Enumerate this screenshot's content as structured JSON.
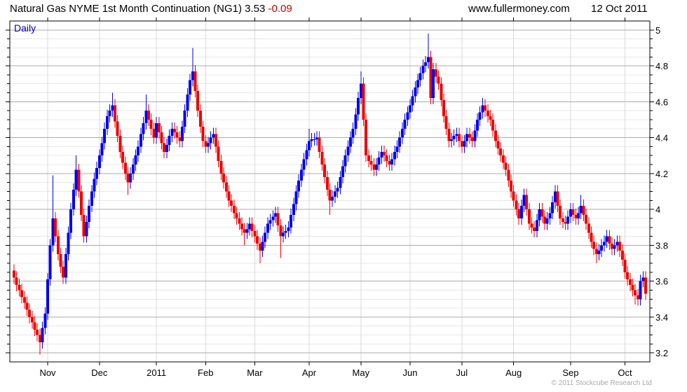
{
  "header": {
    "instrument": "Natural Gas NYME 1st Month Continuation (NG1)",
    "last": "3.53",
    "change": "-0.09",
    "website": "www.fullermoney.com",
    "date": "12 Oct 2011"
  },
  "chart": {
    "frequency_label": "Daily",
    "copyright": "© 2011 Stockcube Research Ltd"
  },
  "colors": {
    "up": "#0000ee",
    "down": "#ee0000",
    "change_text": "#cc0000",
    "daily_label": "#0000bb",
    "grid_major": "#ababab",
    "grid_minor": "#e8e8e8",
    "grid_vertical": "#d9d9d9",
    "axis": "#000000",
    "label_text": "#000000",
    "copyright_text": "#a8a8a8"
  },
  "chart_data": {
    "type": "candlestick",
    "title": "Natural Gas NYME 1st Month Continuation (NG1)",
    "series_name": "NG1 Daily",
    "last_price": 3.53,
    "change": -0.09,
    "grid": true,
    "legend_position": "none",
    "ylabel": "",
    "xlabel": "",
    "ylim": [
      3.15,
      5.05
    ],
    "yticks": [
      3.2,
      3.4,
      3.6,
      3.8,
      4.0,
      4.2,
      4.4,
      4.6,
      4.8,
      5.0
    ],
    "ytick_labels": [
      "3.2",
      "3.4",
      "3.6",
      "3.8",
      "4",
      "4.2",
      "4.4",
      "4.6",
      "4.8",
      "5"
    ],
    "minor_step": 0.05,
    "x_axis_months": [
      {
        "label": "Nov",
        "day": 13
      },
      {
        "label": "Dec",
        "day": 33
      },
      {
        "label": "2011",
        "day": 55
      },
      {
        "label": "Feb",
        "day": 74
      },
      {
        "label": "Mar",
        "day": 93
      },
      {
        "label": "Apr",
        "day": 114
      },
      {
        "label": "May",
        "day": 134
      },
      {
        "label": "Jun",
        "day": 153
      },
      {
        "label": "Jul",
        "day": 173
      },
      {
        "label": "Aug",
        "day": 193
      },
      {
        "label": "Sep",
        "day": 215
      },
      {
        "label": "Oct",
        "day": 236
      }
    ],
    "first_open": 3.66,
    "wick_pad": 0.035,
    "closes": [
      3.62,
      3.58,
      3.55,
      3.51,
      3.48,
      3.44,
      3.4,
      3.37,
      3.33,
      3.3,
      3.26,
      3.34,
      3.42,
      3.61,
      3.8,
      3.95,
      3.85,
      3.75,
      3.68,
      3.62,
      3.75,
      3.87,
      4.0,
      4.11,
      4.22,
      4.1,
      3.97,
      3.85,
      3.93,
      4.02,
      4.1,
      4.17,
      4.23,
      4.3,
      4.37,
      4.45,
      4.52,
      4.55,
      4.58,
      4.49,
      4.41,
      4.32,
      4.26,
      4.2,
      4.15,
      4.2,
      4.25,
      4.3,
      4.35,
      4.42,
      4.48,
      4.55,
      4.5,
      4.45,
      4.4,
      4.48,
      4.43,
      4.37,
      4.32,
      4.36,
      4.41,
      4.45,
      4.43,
      4.4,
      4.38,
      4.46,
      4.55,
      4.64,
      4.72,
      4.77,
      4.66,
      4.55,
      4.46,
      4.38,
      4.35,
      4.37,
      4.4,
      4.42,
      4.35,
      4.27,
      4.2,
      4.15,
      4.1,
      4.05,
      4.02,
      3.98,
      3.95,
      3.92,
      3.89,
      3.87,
      3.89,
      3.92,
      3.88,
      3.85,
      3.81,
      3.77,
      3.82,
      3.87,
      3.92,
      3.94,
      3.96,
      3.98,
      3.91,
      3.85,
      3.87,
      3.88,
      3.9,
      3.97,
      4.03,
      4.1,
      4.16,
      4.22,
      4.28,
      4.33,
      4.38,
      4.39,
      4.39,
      4.4,
      4.32,
      4.25,
      4.18,
      4.11,
      4.05,
      4.07,
      4.1,
      4.12,
      4.18,
      4.24,
      4.3,
      4.35,
      4.4,
      4.45,
      4.53,
      4.62,
      4.7,
      4.5,
      4.3,
      4.27,
      4.25,
      4.22,
      4.25,
      4.29,
      4.32,
      4.3,
      4.27,
      4.25,
      4.28,
      4.32,
      4.35,
      4.4,
      4.45,
      4.5,
      4.54,
      4.58,
      4.63,
      4.68,
      4.72,
      4.76,
      4.8,
      4.82,
      4.85,
      4.62,
      4.78,
      4.74,
      4.7,
      4.61,
      4.52,
      4.45,
      4.38,
      4.39,
      4.41,
      4.42,
      4.38,
      4.35,
      4.38,
      4.42,
      4.4,
      4.38,
      4.44,
      4.5,
      4.54,
      4.58,
      4.55,
      4.52,
      4.5,
      4.44,
      4.38,
      4.34,
      4.3,
      4.26,
      4.22,
      4.16,
      4.1,
      4.05,
      4.0,
      3.95,
      4.02,
      4.08,
      4.0,
      3.92,
      3.9,
      3.88,
      3.94,
      4.0,
      3.96,
      3.92,
      3.95,
      3.98,
      4.04,
      4.1,
      4.02,
      3.95,
      3.93,
      3.92,
      3.96,
      4.0,
      3.97,
      3.95,
      3.98,
      4.02,
      3.97,
      3.92,
      3.87,
      3.82,
      3.78,
      3.75,
      3.77,
      3.8,
      3.82,
      3.85,
      3.81,
      3.78,
      3.8,
      3.82,
      3.77,
      3.72,
      3.65,
      3.61,
      3.58,
      3.55,
      3.52,
      3.5,
      3.6,
      3.62,
      3.53
    ],
    "wick_highs": {
      "15": 4.19,
      "24": 4.3,
      "38": 4.65,
      "51": 4.64,
      "69": 4.9,
      "114": 4.45,
      "134": 4.77,
      "160": 4.98,
      "181": 4.62,
      "219": 4.08
    },
    "wick_lows": {
      "10": 3.19,
      "44": 4.08,
      "89": 3.8,
      "95": 3.7,
      "103": 3.73,
      "122": 3.97,
      "201": 3.85,
      "225": 3.7,
      "240": 3.47
    }
  }
}
